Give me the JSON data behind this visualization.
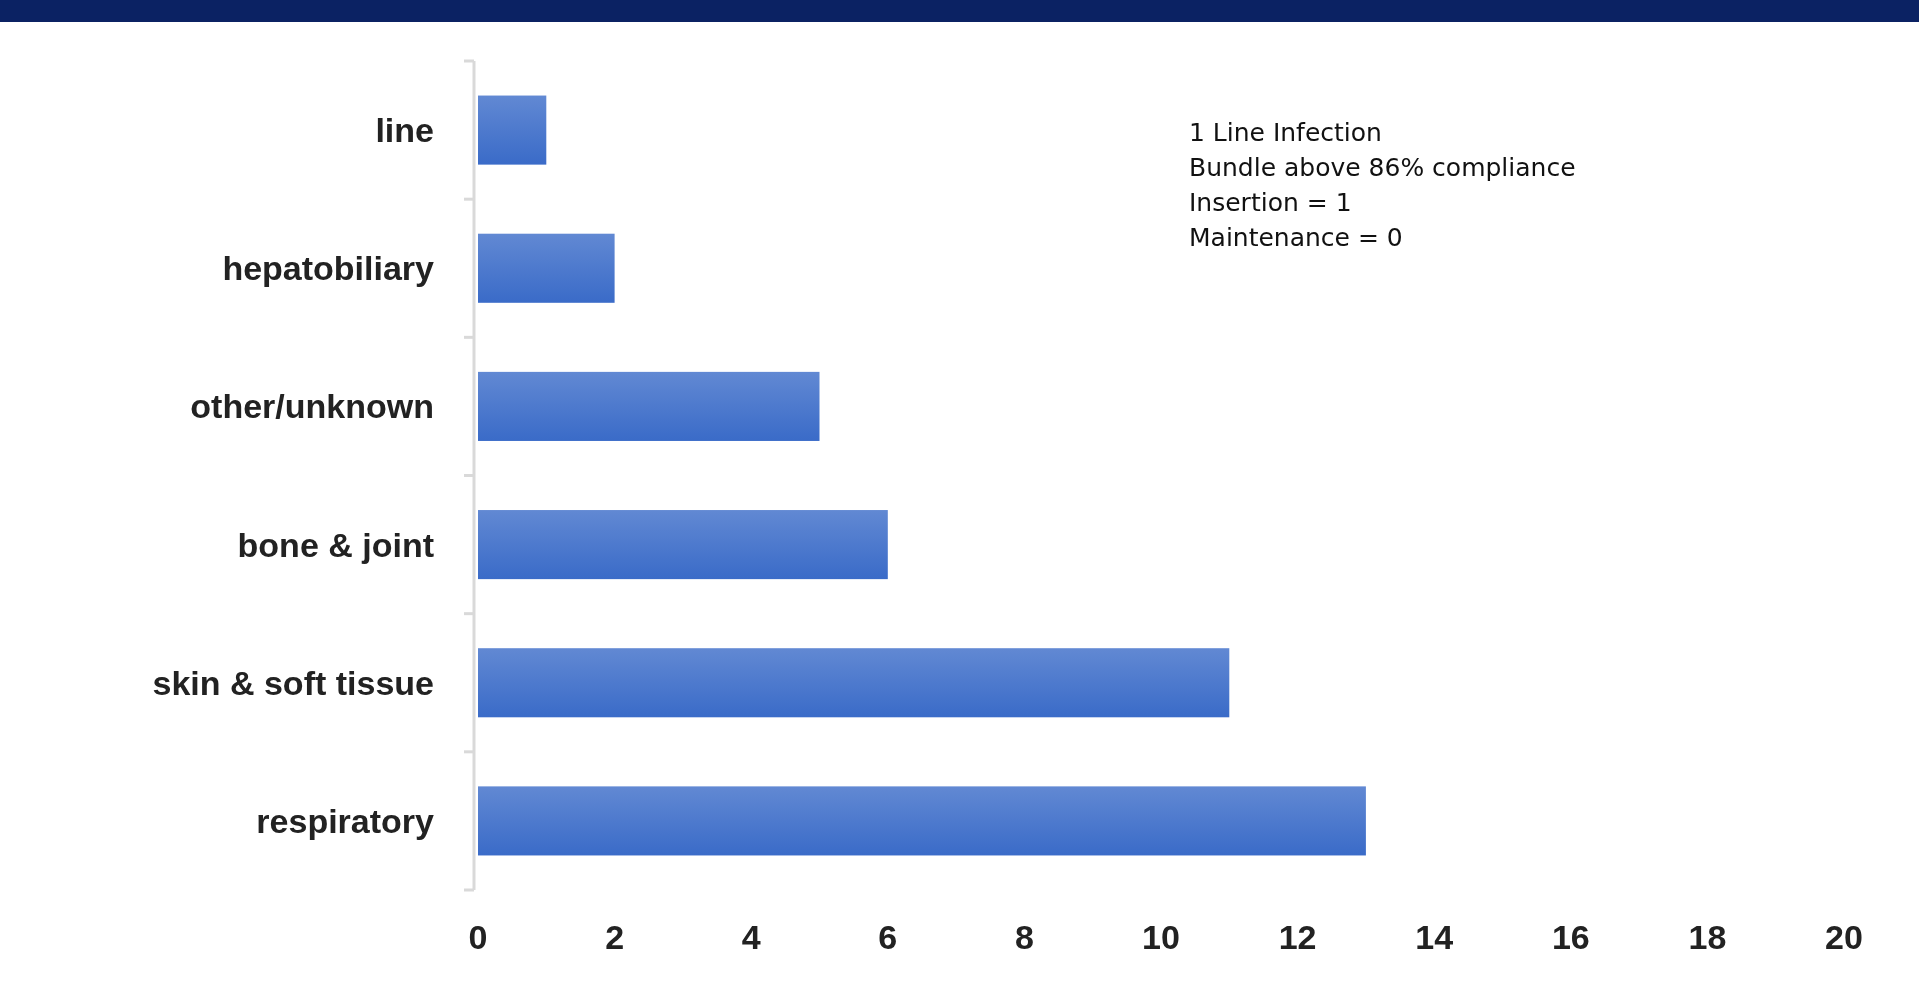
{
  "chart_data": {
    "type": "bar",
    "orientation": "horizontal",
    "categories": [
      "line",
      "hepatobiliary",
      "other/unknown",
      "bone & joint",
      "skin & soft tissue",
      "respiratory"
    ],
    "values": [
      1,
      2,
      5,
      6,
      11,
      13
    ],
    "color": "#3a6bc8",
    "xlim": [
      0,
      20
    ],
    "xticks": [
      0,
      2,
      4,
      6,
      8,
      10,
      12,
      14,
      16,
      18,
      20
    ],
    "grid": false,
    "annotations": [
      "1 Line Infection",
      "Bundle above 86% compliance",
      "Insertion = 1",
      "Maintenance = 0"
    ]
  }
}
